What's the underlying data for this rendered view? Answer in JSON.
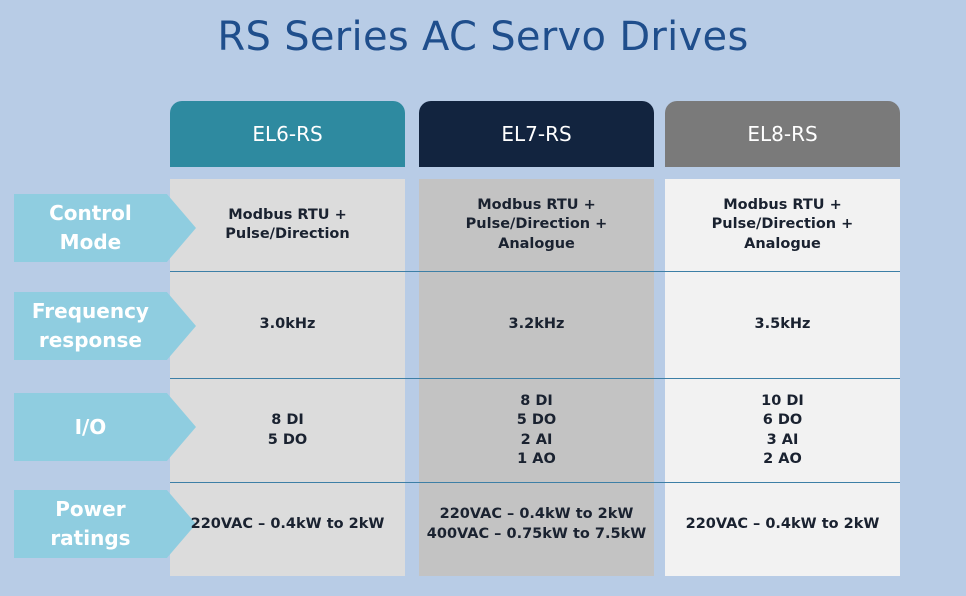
{
  "title": "RS Series AC Servo Drives",
  "columns": [
    {
      "name": "EL6-RS",
      "header_color": "#2e8aa0",
      "body_color": "#dcdcdc"
    },
    {
      "name": "EL7-RS",
      "header_color": "#12243f",
      "body_color": "#c3c3c3"
    },
    {
      "name": "EL8-RS",
      "header_color": "#7a7a7a",
      "body_color": "#f2f2f2"
    }
  ],
  "rows": [
    {
      "label": "Control\nMode",
      "values": [
        "Modbus RTU +\nPulse/Direction",
        "Modbus RTU +\nPulse/Direction +\nAnalogue",
        "Modbus RTU +\nPulse/Direction +\nAnalogue"
      ]
    },
    {
      "label": "Frequency\nresponse",
      "values": [
        "3.0kHz",
        "3.2kHz",
        "3.5kHz"
      ]
    },
    {
      "label": "I/O",
      "values": [
        "8 DI\n5 DO",
        "8 DI\n5 DO\n2 AI\n1 AO",
        "10 DI\n6 DO\n3 AI\n2 AO"
      ]
    },
    {
      "label": "Power\nratings",
      "values": [
        "220VAC – 0.4kW to 2kW",
        "220VAC – 0.4kW to 2kW\n400VAC – 0.75kW to 7.5kW",
        "220VAC – 0.4kW to 2kW"
      ]
    }
  ],
  "colors": {
    "title": "#1f4e8c",
    "label_bg": "#8fcde0",
    "background": "#b8cce6"
  }
}
